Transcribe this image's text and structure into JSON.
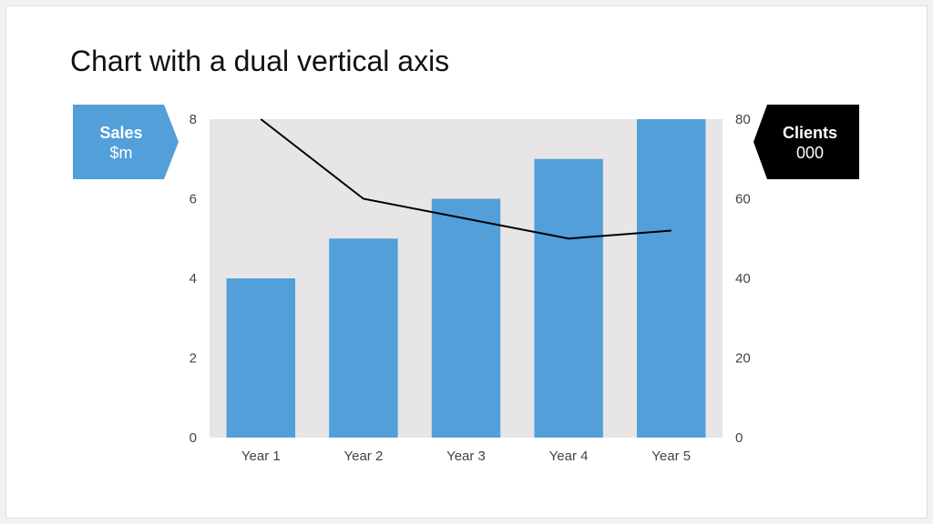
{
  "title": "Chart with a dual vertical axis",
  "colors": {
    "bar": "#529fd9",
    "plot_bg": "#e7e5e6",
    "line": "#000000",
    "left_tag_bg": "#529fd9",
    "right_tag_bg": "#000000"
  },
  "left_tag": {
    "line1": "Sales",
    "line2": "$m"
  },
  "right_tag": {
    "line1": "Clients",
    "line2": "000"
  },
  "chart_data": {
    "type": "bar",
    "categories": [
      "Year 1",
      "Year 2",
      "Year 3",
      "Year 4",
      "Year 5"
    ],
    "series": [
      {
        "name": "Sales",
        "type": "bar",
        "axis": "left",
        "values": [
          4,
          5,
          6,
          7,
          8
        ]
      },
      {
        "name": "Clients",
        "type": "line",
        "axis": "right",
        "values": [
          80,
          60,
          55,
          50,
          52
        ]
      }
    ],
    "title": "Chart with a dual vertical axis",
    "ylim": [
      0,
      8
    ],
    "yticks": [
      "0",
      "2",
      "4",
      "6",
      "8"
    ],
    "y2lim": [
      0,
      80
    ],
    "y2ticks": [
      "0",
      "20",
      "40",
      "60",
      "80"
    ],
    "ylabel": "Sales $m",
    "y2label": "Clients 000",
    "grid": false,
    "legend": "none"
  }
}
